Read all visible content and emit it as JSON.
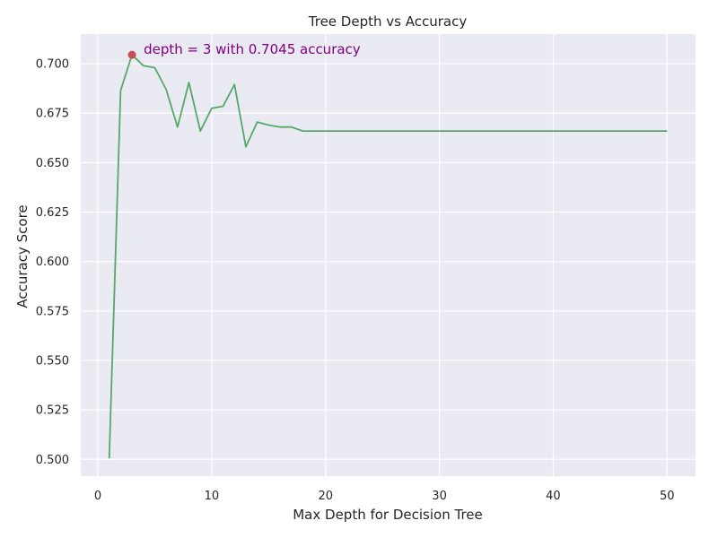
{
  "chart_data": {
    "type": "line",
    "title": "Tree Depth vs Accuracy",
    "xlabel": "Max Depth for Decision Tree",
    "ylabel": "Accuracy Score",
    "xlim": [
      -1.5,
      52.5
    ],
    "ylim": [
      0.4915,
      0.715
    ],
    "x_ticks": [
      0,
      10,
      20,
      30,
      40,
      50
    ],
    "y_ticks": [
      0.5,
      0.525,
      0.55,
      0.575,
      0.6,
      0.625,
      0.65,
      0.675,
      0.7
    ],
    "x_tick_labels": [
      "0",
      "10",
      "20",
      "30",
      "40",
      "50"
    ],
    "y_tick_labels": [
      "0.500",
      "0.525",
      "0.550",
      "0.575",
      "0.600",
      "0.625",
      "0.650",
      "0.675",
      "0.700"
    ],
    "grid": true,
    "series": [
      {
        "color": "#55a868",
        "x": [
          1,
          2,
          3,
          4,
          5,
          6,
          7,
          8,
          9,
          10,
          11,
          12,
          13,
          14,
          15,
          16,
          17,
          18,
          19,
          20,
          21,
          22,
          23,
          24,
          25,
          26,
          27,
          28,
          29,
          30,
          31,
          32,
          33,
          34,
          35,
          36,
          37,
          38,
          39,
          40,
          41,
          42,
          43,
          44,
          45,
          46,
          47,
          48,
          49,
          50
        ],
        "y": [
          0.5005,
          0.6865,
          0.7045,
          0.699,
          0.698,
          0.687,
          0.668,
          0.6905,
          0.666,
          0.6775,
          0.6785,
          0.6895,
          0.658,
          0.6705,
          0.669,
          0.668,
          0.668,
          0.666,
          0.666,
          0.666,
          0.666,
          0.666,
          0.666,
          0.666,
          0.666,
          0.666,
          0.666,
          0.666,
          0.666,
          0.666,
          0.666,
          0.666,
          0.666,
          0.666,
          0.666,
          0.666,
          0.666,
          0.666,
          0.666,
          0.666,
          0.666,
          0.666,
          0.666,
          0.666,
          0.666,
          0.666,
          0.666,
          0.666,
          0.666,
          0.666
        ]
      }
    ],
    "highlight_point": {
      "x": 3,
      "y": 0.7045,
      "color": "#c44e52"
    },
    "annotation": {
      "text": "depth = 3 with 0.7045 accuracy",
      "x": 3,
      "y": 0.7045,
      "color": "#800080"
    },
    "background_color": "#eaeaf2",
    "grid_color": "#ffffff"
  }
}
